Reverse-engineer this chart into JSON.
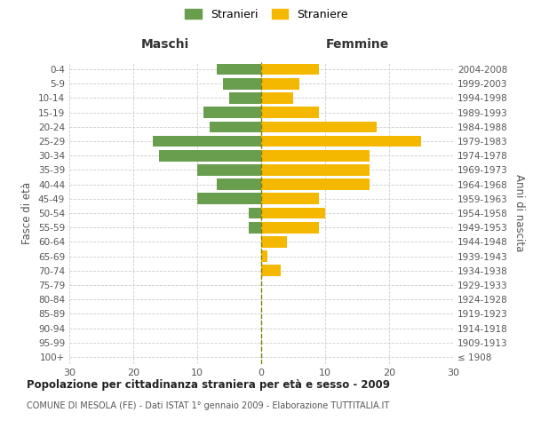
{
  "age_groups": [
    "100+",
    "95-99",
    "90-94",
    "85-89",
    "80-84",
    "75-79",
    "70-74",
    "65-69",
    "60-64",
    "55-59",
    "50-54",
    "45-49",
    "40-44",
    "35-39",
    "30-34",
    "25-29",
    "20-24",
    "15-19",
    "10-14",
    "5-9",
    "0-4"
  ],
  "birth_years": [
    "≤ 1908",
    "1909-1913",
    "1914-1918",
    "1919-1923",
    "1924-1928",
    "1929-1933",
    "1934-1938",
    "1939-1943",
    "1944-1948",
    "1949-1953",
    "1954-1958",
    "1959-1963",
    "1964-1968",
    "1969-1973",
    "1974-1978",
    "1979-1983",
    "1984-1988",
    "1989-1993",
    "1994-1998",
    "1999-2003",
    "2004-2008"
  ],
  "maschi": [
    0,
    0,
    0,
    0,
    0,
    0,
    0,
    0,
    0,
    2,
    2,
    10,
    7,
    10,
    16,
    17,
    8,
    9,
    5,
    6,
    7
  ],
  "femmine": [
    0,
    0,
    0,
    0,
    0,
    0,
    3,
    1,
    4,
    9,
    10,
    9,
    17,
    17,
    17,
    25,
    18,
    9,
    5,
    6,
    9
  ],
  "male_color": "#6a9e4f",
  "female_color": "#f5b800",
  "male_label": "Stranieri",
  "female_label": "Straniere",
  "title": "Popolazione per cittadinanza straniera per età e sesso - 2009",
  "subtitle": "COMUNE DI MESOLA (FE) - Dati ISTAT 1° gennaio 2009 - Elaborazione TUTTITALIA.IT",
  "xlabel_left": "Maschi",
  "xlabel_right": "Femmine",
  "ylabel_left": "Fasce di età",
  "ylabel_right": "Anni di nascita",
  "xlim": 30,
  "background_color": "#ffffff",
  "grid_color": "#cccccc"
}
